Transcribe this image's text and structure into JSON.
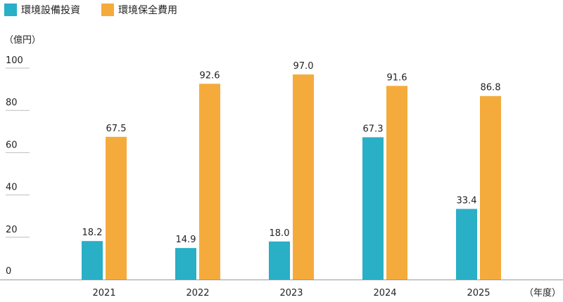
{
  "chart_data": {
    "type": "bar",
    "categories": [
      "2021",
      "2022",
      "2023",
      "2024",
      "2025"
    ],
    "series": [
      {
        "name": "環境設備投資",
        "color": "#29afc6",
        "values": [
          18.2,
          14.9,
          18.0,
          67.3,
          33.4
        ],
        "labels": [
          "18.2",
          "14.9",
          "18.0",
          "67.3",
          "33.4"
        ]
      },
      {
        "name": "環境保全費用",
        "color": "#f5ab3c",
        "values": [
          67.5,
          92.6,
          97.0,
          91.6,
          86.8
        ],
        "labels": [
          "67.5",
          "92.6",
          "97.0",
          "91.6",
          "86.8"
        ]
      }
    ],
    "yticks": [
      "0",
      "20",
      "40",
      "60",
      "80",
      "100"
    ],
    "ylim": [
      0,
      100
    ],
    "yunit": "（億円）",
    "xunit": "（年度）",
    "grid": false,
    "legend": "top-left"
  }
}
